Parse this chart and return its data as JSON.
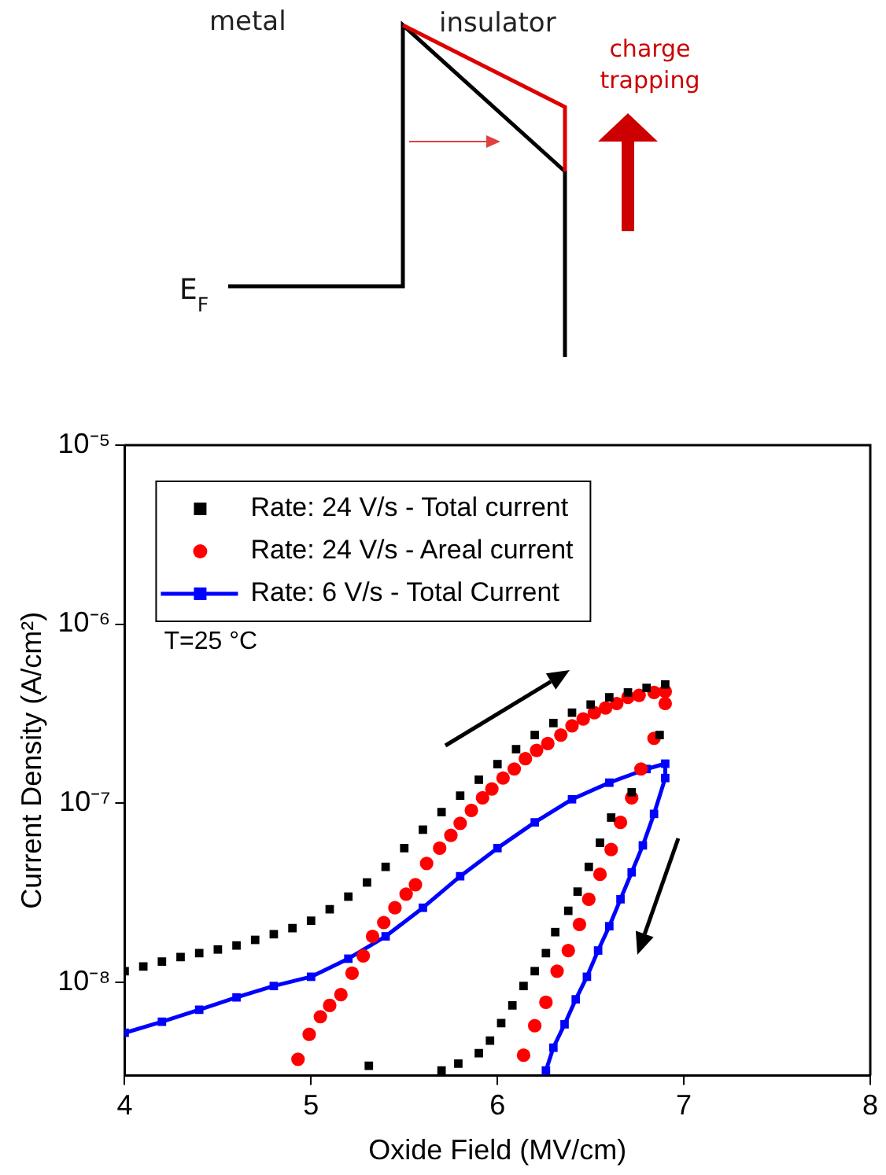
{
  "chart_data": {
    "type": "scatter",
    "xlabel": "Oxide Field (MV/cm)",
    "ylabel": "Current Density (A/cm²)",
    "log": "y",
    "grid": false,
    "legend": "top left",
    "xlim": [
      4,
      8
    ],
    "xticks": [
      4,
      5,
      6,
      7,
      8
    ],
    "ylim": [
      3e-09,
      1e-05
    ],
    "yticks": [
      {
        "value": 1e-08,
        "label": "10⁻⁸"
      },
      {
        "value": 1e-07,
        "label": "10⁻⁷"
      },
      {
        "value": 1e-06,
        "label": "10⁻⁶"
      },
      {
        "value": 1e-05,
        "label": "10⁻⁵"
      }
    ],
    "annotations": [
      "T=25 °C",
      "metal",
      "insulator",
      "charge trapping",
      "E$_{F}$"
    ],
    "series": [
      {
        "name": "Rate: 24 V/s - Total current",
        "type": "scatter",
        "marker": "square",
        "color": "#000000",
        "x": [
          4.0,
          4.1,
          4.2,
          4.3,
          4.4,
          4.5,
          4.6,
          4.7,
          4.8,
          4.9,
          5.0,
          5.1,
          5.2,
          5.3,
          5.4,
          5.5,
          5.6,
          5.7,
          5.8,
          5.9,
          6.0,
          6.1,
          6.2,
          6.3,
          6.4,
          6.5,
          6.6,
          6.7,
          6.8,
          6.9,
          6.87,
          6.72,
          6.61,
          6.55,
          6.49,
          6.43,
          6.38,
          6.31,
          6.26,
          6.2,
          6.14,
          6.08,
          6.02,
          5.96,
          5.9,
          5.79,
          5.7,
          5.31
        ],
        "values": [
          1.15e-08,
          1.22e-08,
          1.3e-08,
          1.38e-08,
          1.45e-08,
          1.52e-08,
          1.6e-08,
          1.72e-08,
          1.85e-08,
          2e-08,
          2.2e-08,
          2.55e-08,
          3e-08,
          3.6e-08,
          4.4e-08,
          5.6e-08,
          7.1e-08,
          8.9e-08,
          1.1e-07,
          1.35e-07,
          1.65e-07,
          2e-07,
          2.4e-07,
          2.8e-07,
          3.2e-07,
          3.55e-07,
          3.9e-07,
          4.15e-07,
          4.4e-07,
          4.6e-07,
          2.4e-07,
          1.15e-07,
          8.3e-08,
          6e-08,
          4.4e-08,
          3.2e-08,
          2.5e-08,
          1.9e-08,
          1.45e-08,
          1.15e-08,
          9.5e-09,
          7.4e-09,
          5.9e-09,
          4.7e-09,
          4e-09,
          3.5e-09,
          3.2e-09,
          3.4e-09
        ]
      },
      {
        "name": "Rate: 24 V/s - Areal current",
        "type": "scatter",
        "marker": "circle",
        "color": "#ff0000",
        "x": [
          4.93,
          4.99,
          5.05,
          5.1,
          5.16,
          5.22,
          5.28,
          5.33,
          5.39,
          5.45,
          5.51,
          5.56,
          5.62,
          5.69,
          5.75,
          5.8,
          5.86,
          5.92,
          5.97,
          6.03,
          6.09,
          6.15,
          6.21,
          6.27,
          6.34,
          6.4,
          6.46,
          6.52,
          6.58,
          6.64,
          6.7,
          6.76,
          6.84,
          6.9,
          6.9,
          6.84,
          6.77,
          6.72,
          6.66,
          6.61,
          6.55,
          6.49,
          6.44,
          6.38,
          6.32,
          6.26,
          6.2,
          6.14
        ],
        "values": [
          3.7e-09,
          5.1e-09,
          6.4e-09,
          7.4e-09,
          8.5e-09,
          1.12e-08,
          1.4e-08,
          1.8e-08,
          2.15e-08,
          2.6e-08,
          3.1e-08,
          3.5e-08,
          4.6e-08,
          5.6e-08,
          6.6e-08,
          7.7e-08,
          9.1e-08,
          1.07e-07,
          1.2e-07,
          1.38e-07,
          1.55e-07,
          1.77e-07,
          1.97e-07,
          2.15e-07,
          2.4e-07,
          2.7e-07,
          2.95e-07,
          3.2e-07,
          3.4e-07,
          3.6e-07,
          3.9e-07,
          4e-07,
          4.15e-07,
          4.2e-07,
          3.6e-07,
          2.3e-07,
          1.55e-07,
          1.07e-07,
          7.8e-08,
          5.5e-08,
          4e-08,
          2.9e-08,
          2.1e-08,
          1.5e-08,
          1.15e-08,
          7.7e-09,
          5.7e-09,
          3.9e-09
        ]
      },
      {
        "name": "Rate: 6 V/s - Total Current",
        "type": "line",
        "marker": "square",
        "line_style": "solid",
        "color": "#0000ff",
        "x": [
          4.0,
          4.2,
          4.4,
          4.6,
          4.8,
          5.0,
          5.2,
          5.4,
          5.6,
          5.8,
          6.0,
          6.2,
          6.4,
          6.6,
          6.8,
          6.9,
          6.9,
          6.84,
          6.78,
          6.72,
          6.66,
          6.6,
          6.54,
          6.48,
          6.42,
          6.36,
          6.3,
          6.26
        ],
        "values": [
          5.2e-09,
          6e-09,
          7e-09,
          8.2e-09,
          9.5e-09,
          1.07e-08,
          1.35e-08,
          1.8e-08,
          2.6e-08,
          3.9e-08,
          5.6e-08,
          7.8e-08,
          1.05e-07,
          1.3e-07,
          1.55e-07,
          1.66e-07,
          1.38e-07,
          8.7e-08,
          5.8e-08,
          4.1e-08,
          2.9e-08,
          2.05e-08,
          1.5e-08,
          1.07e-08,
          8e-09,
          5.8e-09,
          4.3e-09,
          3.2e-09
        ]
      }
    ]
  }
}
